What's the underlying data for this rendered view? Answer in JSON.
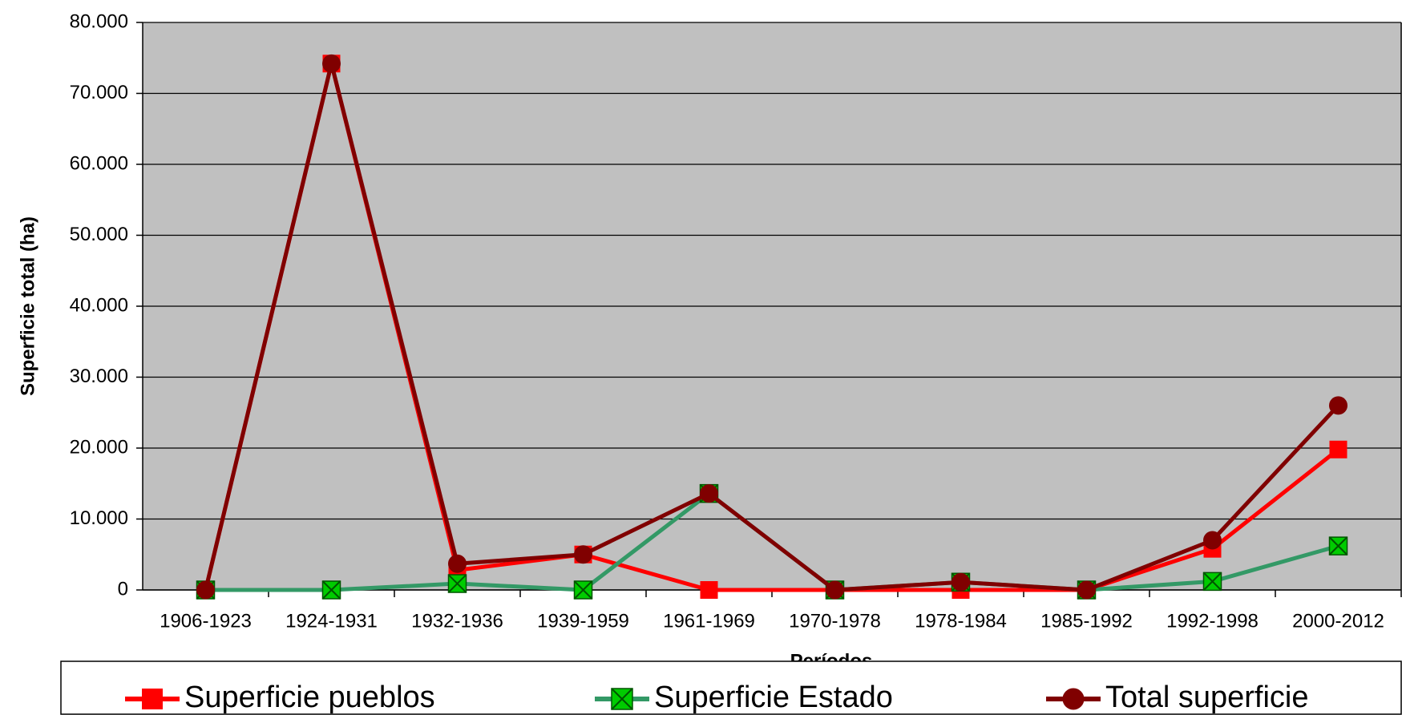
{
  "chart_data": {
    "type": "line",
    "x_label": "Períodos",
    "y_label": "Superficie total (ha)",
    "categories": [
      "1906-1923",
      "1924-1931",
      "1932-1936",
      "1939-1959",
      "1961-1969",
      "1970-1978",
      "1978-1984",
      "1985-1992",
      "1992-1998",
      "2000-2012"
    ],
    "series": [
      {
        "name": "Superficie pueblos",
        "color": "#ff0000",
        "marker": "square",
        "values": [
          0,
          74200,
          2800,
          5000,
          0,
          0,
          0,
          0,
          5800,
          19800
        ]
      },
      {
        "name": "Superficie Estado",
        "color": "#339966",
        "marker_color": "#00cc00",
        "marker": "x-square",
        "values": [
          0,
          0,
          900,
          0,
          13600,
          0,
          1100,
          0,
          1200,
          6200
        ]
      },
      {
        "name": "Total superficie",
        "color": "#800000",
        "marker": "circle",
        "values": [
          0,
          74200,
          3700,
          5000,
          13600,
          0,
          1100,
          0,
          7000,
          26000
        ]
      }
    ],
    "ylim": [
      0,
      80000
    ],
    "yticks": [
      0,
      {
        "value": 10000,
        "label": "10.000"
      },
      {
        "value": 20000,
        "label": "20.000"
      },
      {
        "value": 30000,
        "label": "30.000"
      },
      {
        "value": 40000,
        "label": "40.000"
      },
      {
        "value": 50000,
        "label": "50.000"
      },
      {
        "value": 60000,
        "label": "60.000"
      },
      {
        "value": 70000,
        "label": "70.000"
      },
      {
        "value": 80000,
        "label": "80.000"
      }
    ],
    "grid": true,
    "plot_background": "#c0c0c0",
    "legend": "bottom"
  }
}
